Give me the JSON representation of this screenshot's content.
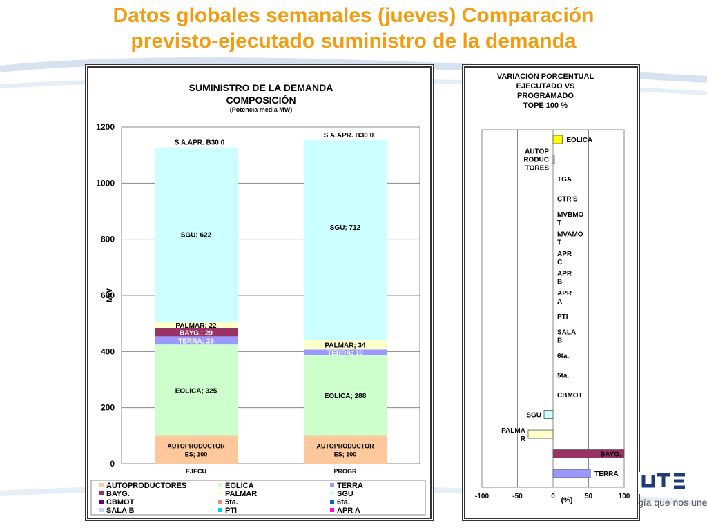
{
  "page": {
    "title_line1": "Datos globales semanales  (jueves) Comparación",
    "title_line2": "previsto-ejecutado suministro de la demanda",
    "slogan": "gía que nos une"
  },
  "chart_data": [
    {
      "type": "bar",
      "stacked": true,
      "title": "SUMINISTRO DE LA DEMANDA",
      "subtitle": "COMPOSICIÓN",
      "note": "(Potencia media MW)",
      "ylabel": "MW",
      "ylim": [
        0,
        1200
      ],
      "yticks": [
        0,
        200,
        400,
        600,
        800,
        1000,
        1200
      ],
      "grid": true,
      "categories": [
        "EJECU",
        "PROGR"
      ],
      "series": [
        {
          "name": "AUTOPRODUCTORES",
          "label": "AUTOPRODUCTOR ES",
          "color": "#fcc89c",
          "values": [
            100,
            100
          ],
          "labels": [
            "AUTOPRODUCTOR ES; 100",
            "AUTOPRODUCTOR ES; 100"
          ]
        },
        {
          "name": "EOLICA",
          "label": "EOLICA",
          "color": "#ccffcc",
          "values": [
            325,
            288
          ],
          "labels": [
            "EOLICA; 325",
            "EOLICA; 288"
          ]
        },
        {
          "name": "TERRA",
          "label": "TERRA",
          "color": "#9999ff",
          "values": [
            29,
            19
          ],
          "labels": [
            "TERRA; 29",
            "TERRA; 19"
          ]
        },
        {
          "name": "BAYG.",
          "label": "BAYG.",
          "color": "#993366",
          "values": [
            29,
            0
          ],
          "labels": [
            "BAYG.; 29",
            ""
          ]
        },
        {
          "name": "PALMAR",
          "label": "PALMAR",
          "color": "#ffffcc",
          "values": [
            22,
            34
          ],
          "labels": [
            "PALMAR; 22",
            "PALMAR; 34"
          ]
        },
        {
          "name": "SGU",
          "label": "SGU",
          "color": "#ccffff",
          "values": [
            622,
            712
          ],
          "labels": [
            "SGU; 622",
            "SGU; 712"
          ]
        },
        {
          "name": "CBMOT",
          "label": "CBMOT",
          "color": "#660066",
          "values": [
            0,
            0
          ],
          "labels": [
            "",
            ""
          ]
        },
        {
          "name": "5ta.",
          "label": "5ta.",
          "color": "#ff8080",
          "values": [
            0,
            0
          ],
          "labels": [
            "",
            ""
          ]
        },
        {
          "name": "6ta.",
          "label": "6ta.",
          "color": "#0066cc",
          "values": [
            0,
            0
          ],
          "labels": [
            "",
            ""
          ]
        },
        {
          "name": "SALA B",
          "label": "SALA B",
          "color": "#ccccff",
          "values": [
            0,
            0
          ],
          "labels": [
            "",
            ""
          ]
        },
        {
          "name": "PTI",
          "label": "PTI",
          "color": "#00ccff",
          "values": [
            0,
            0
          ],
          "labels": [
            "",
            ""
          ]
        },
        {
          "name": "APR A",
          "label": "APR A",
          "color": "#ff00ff",
          "values": [
            0,
            0
          ],
          "labels": [
            "",
            ""
          ]
        }
      ],
      "top_labels": [
        "S A.APR. B30    0",
        "S A.APR. B30    0"
      ],
      "legend_position": "bottom"
    },
    {
      "type": "bar",
      "orientation": "horizontal",
      "title_lines": [
        "VARIACION  PORCENTUAL",
        "EJECUTADO VS",
        "PROGRAMADO",
        "TOPE 100 %"
      ],
      "xlabel": "(%)",
      "xlim": [
        -100,
        100
      ],
      "xticks": [
        -100,
        -50,
        0,
        50,
        100
      ],
      "categories": [
        "EOLICA",
        "AUTOP RODUC TORES",
        "TGA",
        "CTR'S",
        "MVBMO T",
        "MVAMO T",
        "APR C",
        "APR B",
        "APR A",
        "PTI",
        "SALA B",
        "6ta.",
        "5ta.",
        "CBMOT",
        "SGU",
        "PALMA R",
        "BAYG.",
        "TERRA"
      ],
      "values": [
        13,
        0,
        0,
        0,
        0,
        0,
        0,
        0,
        0,
        0,
        0,
        0,
        0,
        0,
        -12.6,
        -35,
        100,
        52.6
      ],
      "colors": [
        "#ffff00",
        "#fcc89c",
        "#ffffff",
        "#ffffff",
        "#ffffff",
        "#ffffff",
        "#ffffff",
        "#ffffff",
        "#ffffff",
        "#ffffff",
        "#ffffff",
        "#ffffff",
        "#ffffff",
        "#ffffff",
        "#ccffff",
        "#ffffcc",
        "#993366",
        "#9999ff"
      ],
      "grid": true
    }
  ]
}
